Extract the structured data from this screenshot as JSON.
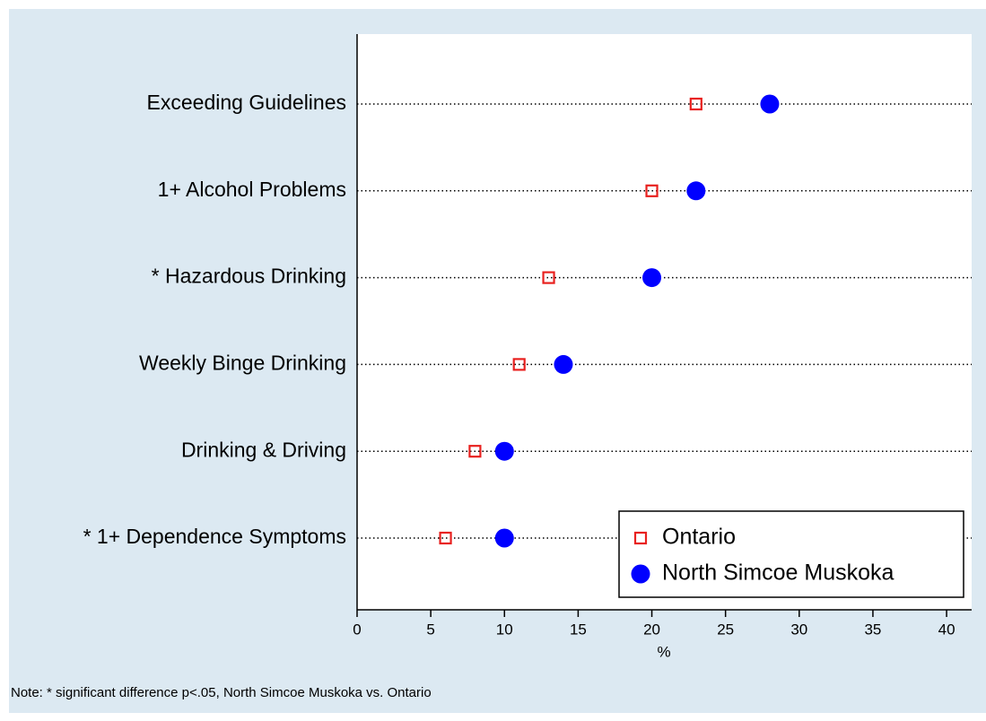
{
  "chart_data": {
    "type": "dot",
    "categories": [
      "Exceeding Guidelines",
      "1+ Alcohol Problems",
      "* Hazardous Drinking",
      "Weekly Binge Drinking",
      "Drinking & Driving",
      "* 1+ Dependence Symptoms"
    ],
    "series": [
      {
        "name": "Ontario",
        "color": "#e8211f",
        "marker": "square-open",
        "values": [
          23,
          20,
          13,
          11,
          8,
          6
        ]
      },
      {
        "name": "North Simcoe Muskoka",
        "color": "#0000ff",
        "marker": "circle",
        "values": [
          28,
          23,
          20,
          14,
          10,
          10
        ]
      }
    ],
    "xlim": [
      0,
      41.7
    ],
    "xticks": [
      0,
      5,
      10,
      15,
      20,
      25,
      30,
      35,
      40
    ],
    "xlabel": "%",
    "legend": "bottom right",
    "note": "Note: * significant difference p<.05, North Simcoe Muskoka vs. Ontario"
  }
}
